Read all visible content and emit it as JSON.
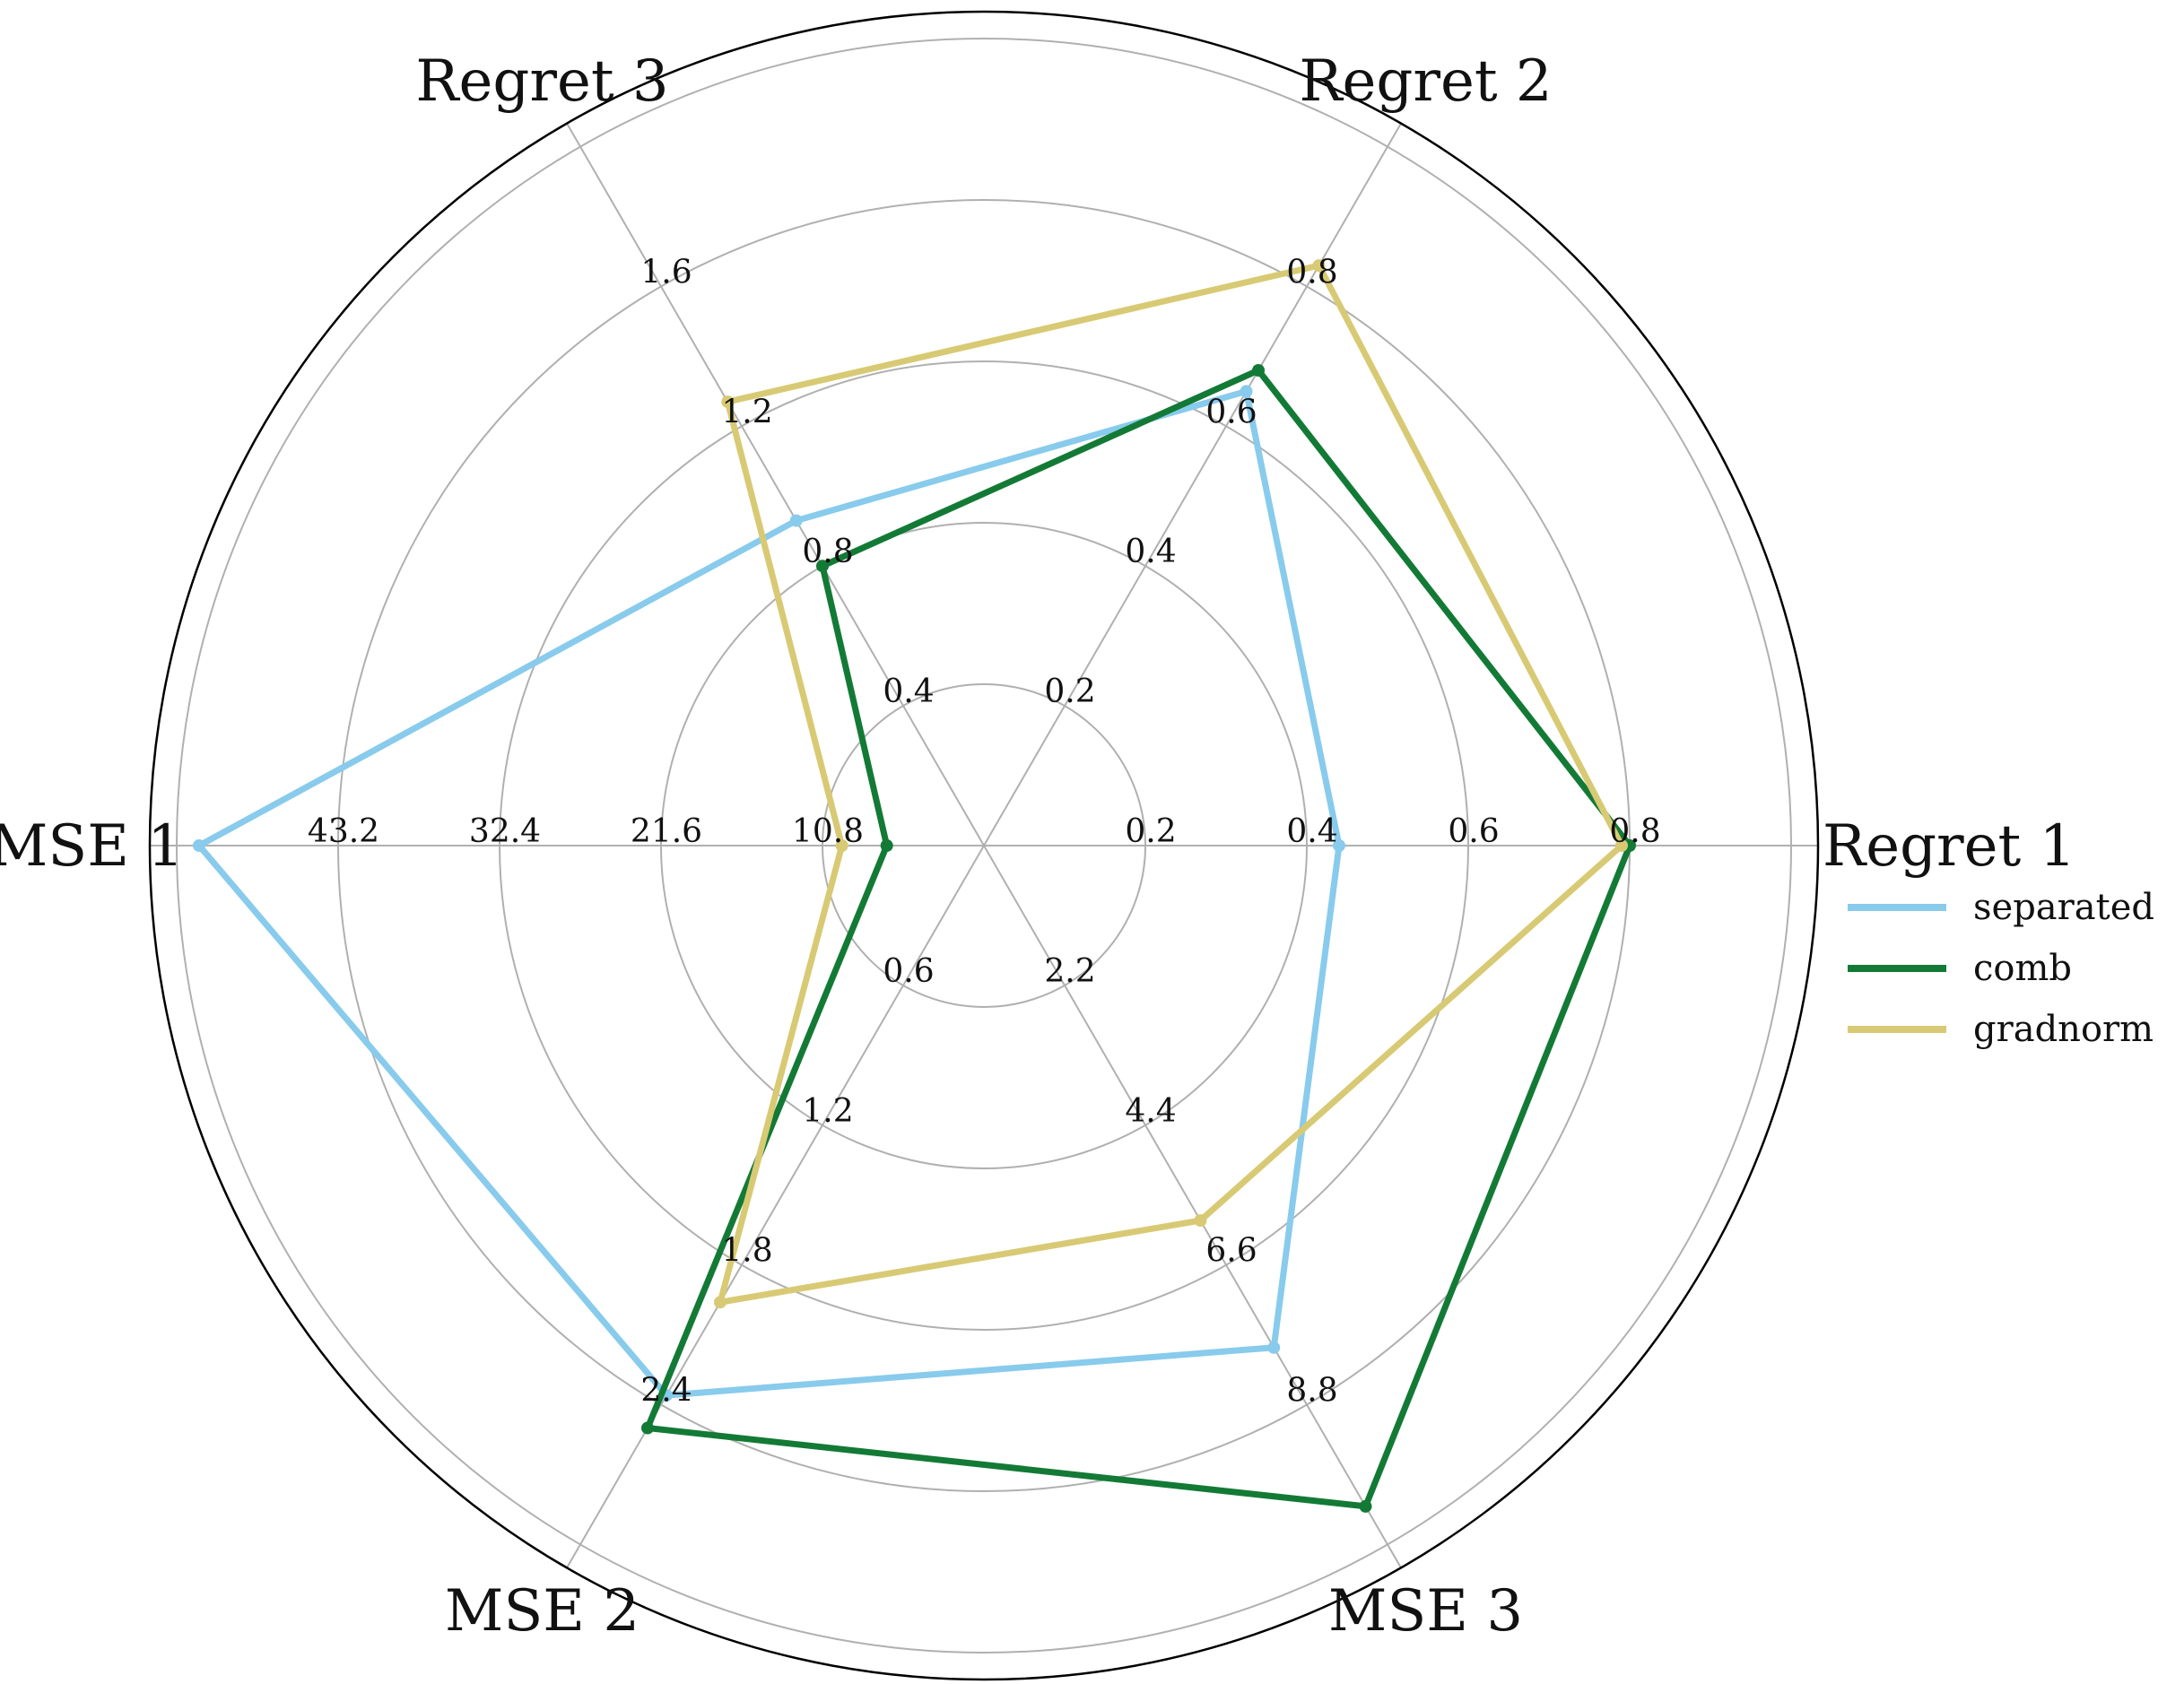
{
  "chart_data": {
    "type": "radar",
    "axes": [
      {
        "label": "Regret 1",
        "ticks": [
          "0.2",
          "0.4",
          "0.6",
          "0.8"
        ],
        "range": [
          0,
          1.0
        ]
      },
      {
        "label": "Regret 2",
        "ticks": [
          "0.2",
          "0.4",
          "0.6",
          "0.8"
        ],
        "range": [
          0,
          1.0
        ]
      },
      {
        "label": "Regret 3",
        "ticks": [
          "0.4",
          "0.8",
          "1.2",
          "1.6"
        ],
        "range": [
          0,
          2.0
        ]
      },
      {
        "label": "MSE 1",
        "ticks": [
          "10.8",
          "21.6",
          "32.4",
          "43.2"
        ],
        "range": [
          0,
          54.0
        ]
      },
      {
        "label": "MSE 2",
        "ticks": [
          "0.6",
          "1.2",
          "1.8",
          "2.4"
        ],
        "range": [
          0,
          3.0
        ]
      },
      {
        "label": "MSE 3",
        "ticks": [
          "2.2",
          "4.4",
          "6.6",
          "8.8"
        ],
        "range": [
          0,
          11.0
        ]
      }
    ],
    "series": [
      {
        "name": "separated",
        "color": "#88cbec",
        "values": [
          0.44,
          0.65,
          0.93,
          52.5,
          2.36,
          7.9
        ]
      },
      {
        "name": "comb",
        "color": "#137a36",
        "values": [
          0.8,
          0.68,
          0.8,
          6.5,
          2.5,
          10.4
        ]
      },
      {
        "name": "gradnorm",
        "color": "#d8ca74",
        "values": [
          0.79,
          0.83,
          1.27,
          9.5,
          1.96,
          5.9
        ]
      }
    ],
    "grid": true,
    "legend": "right"
  }
}
